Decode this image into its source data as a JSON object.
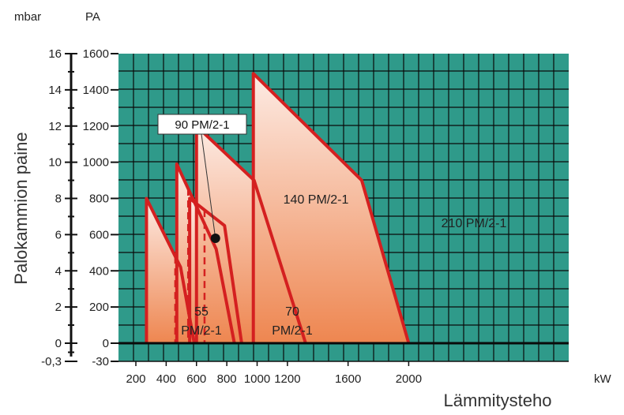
{
  "chart_data": {
    "type": "area",
    "xlabel": "Lämmitysteho",
    "ylabel": "Palokammion paine",
    "x_unit": "kW",
    "y_units": {
      "left": "mbar",
      "right": "PA"
    },
    "xlim": [
      150,
      2050
    ],
    "ylim": [
      -30,
      1600
    ],
    "x_ticks": [
      200,
      400,
      600,
      800,
      1000,
      1200,
      1600,
      2000
    ],
    "y_ticks_pa": [
      -30,
      0,
      200,
      400,
      600,
      800,
      1000,
      1200,
      1400,
      1600
    ],
    "y_ticks_mbar": [
      "-0,3",
      "0",
      "2",
      "4",
      "6",
      "8",
      "10",
      "12",
      "14",
      "16"
    ],
    "grid": true,
    "colors": {
      "plot_bg": "#2f9a8a",
      "grid": "#0a0a0a",
      "curve": "#d42020",
      "fill_top": "#fdebe4",
      "fill_bottom": "#ee8650"
    },
    "series": [
      {
        "label_lines": [
          "55",
          "PM/2-1"
        ],
        "points": [
          [
            270,
            800
          ],
          [
            495,
            420
          ],
          [
            585,
            0
          ]
        ],
        "dashed_x": [
          460
        ]
      },
      {
        "label_lines": [
          "70",
          "PM/2-1"
        ],
        "points": [
          [
            470,
            990
          ],
          [
            730,
            520
          ],
          [
            850,
            0
          ]
        ],
        "dashed_x": [
          545
        ]
      },
      {
        "label_lines": [
          "140 PM/2-1"
        ],
        "points": [
          [
            555,
            800
          ],
          [
            785,
            650
          ],
          [
            898,
            0
          ]
        ],
        "dashed_x": [
          653
        ]
      },
      {
        "label_lines": [
          "210 PM/2-1"
        ],
        "points": [
          [
            600,
            1200
          ],
          [
            980,
            900
          ],
          [
            1320,
            0
          ]
        ],
        "dashed_x": []
      },
      {
        "label_lines": [
          "210 PM/2-1"
        ],
        "points": [
          [
            975,
            1490
          ],
          [
            1690,
            900
          ],
          [
            2000,
            0
          ]
        ],
        "dashed_x": [
          968
        ]
      }
    ],
    "callout": {
      "text": "90 PM/2-1",
      "point": [
        725,
        580
      ]
    }
  }
}
